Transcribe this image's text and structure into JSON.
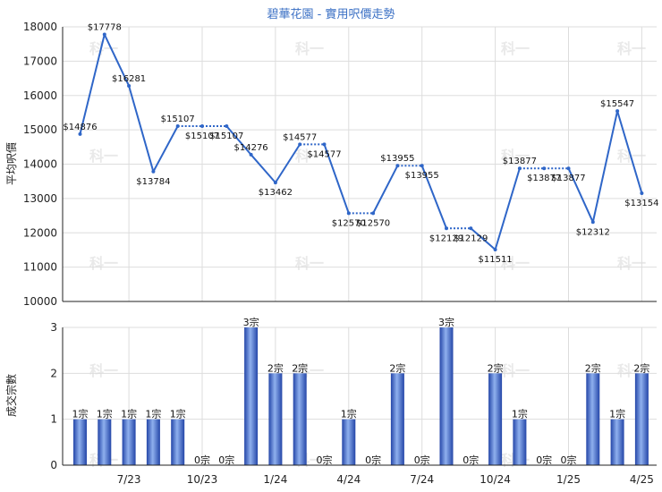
{
  "title": "碧華花園 - 實用呎價走勢",
  "watermark": "科一",
  "colors": {
    "line": "#2f66c8",
    "grid": "#dddddd",
    "bar_dark": "#2446a8",
    "bar_light": "#8fb0ee",
    "title": "#3a6fc4"
  },
  "chart_data": [
    {
      "type": "line",
      "ylabel": "平均呎價",
      "ylim": [
        10000,
        18000
      ],
      "yticks": [
        10000,
        11000,
        12000,
        13000,
        14000,
        15000,
        16000,
        17000,
        18000
      ],
      "grid": true,
      "points": [
        {
          "x": 1,
          "y": 14876,
          "label": "$14876",
          "interpolated": false
        },
        {
          "x": 2,
          "y": 17778,
          "label": "$17778",
          "interpolated": false
        },
        {
          "x": 3,
          "y": 16281,
          "label": "$16281",
          "interpolated": false
        },
        {
          "x": 4,
          "y": 13784,
          "label": "$13784",
          "interpolated": false
        },
        {
          "x": 5,
          "y": 15107,
          "label": "$15107",
          "interpolated": false
        },
        {
          "x": 6,
          "y": 15107,
          "label": "$15107",
          "interpolated": true
        },
        {
          "x": 7,
          "y": 15107,
          "label": "$15107",
          "interpolated": true
        },
        {
          "x": 8,
          "y": 14276,
          "label": "$14276",
          "interpolated": false
        },
        {
          "x": 9,
          "y": 13462,
          "label": "$13462",
          "interpolated": false
        },
        {
          "x": 10,
          "y": 14577,
          "label": "$14577",
          "interpolated": false
        },
        {
          "x": 11,
          "y": 14577,
          "label": "$14577",
          "interpolated": false
        },
        {
          "x": 12,
          "y": 12570,
          "label": "$12570",
          "interpolated": false
        },
        {
          "x": 13,
          "y": 12570,
          "label": "$12570",
          "interpolated": true
        },
        {
          "x": 14,
          "y": 13955,
          "label": "$13955",
          "interpolated": false
        },
        {
          "x": 15,
          "y": 13955,
          "label": "$13955",
          "interpolated": true
        },
        {
          "x": 16,
          "y": 12129,
          "label": "$12129",
          "interpolated": false
        },
        {
          "x": 17,
          "y": 12129,
          "label": "$12129",
          "interpolated": true
        },
        {
          "x": 18,
          "y": 11511,
          "label": "$11511",
          "interpolated": false
        },
        {
          "x": 19,
          "y": 13877,
          "label": "$13877",
          "interpolated": false
        },
        {
          "x": 20,
          "y": 13877,
          "label": "$13877",
          "interpolated": true
        },
        {
          "x": 21,
          "y": 13877,
          "label": "$13877",
          "interpolated": true
        },
        {
          "x": 22,
          "y": 12312,
          "label": "$12312",
          "interpolated": false
        },
        {
          "x": 23,
          "y": 15547,
          "label": "$15547",
          "interpolated": false
        },
        {
          "x": 24,
          "y": 13154,
          "label": "$13154",
          "interpolated": false
        }
      ]
    },
    {
      "type": "bar",
      "ylabel": "成交宗數",
      "ylim": [
        0,
        3
      ],
      "yticks": [
        0,
        1,
        2,
        3
      ],
      "grid": true,
      "values": [
        1,
        1,
        1,
        1,
        1,
        0,
        0,
        3,
        2,
        2,
        0,
        1,
        0,
        2,
        0,
        3,
        0,
        2,
        1,
        0,
        0,
        2,
        1,
        2
      ],
      "labels": [
        "1宗",
        "1宗",
        "1宗",
        "1宗",
        "1宗",
        "0宗",
        "0宗",
        "3宗",
        "2宗",
        "2宗",
        "0宗",
        "1宗",
        "0宗",
        "2宗",
        "0宗",
        "3宗",
        "0宗",
        "2宗",
        "1宗",
        "0宗",
        "0宗",
        "2宗",
        "1宗",
        "2宗"
      ],
      "xticks": [
        {
          "x": 3,
          "label": "7/23"
        },
        {
          "x": 6,
          "label": "10/23"
        },
        {
          "x": 9,
          "label": "1/24"
        },
        {
          "x": 12,
          "label": "4/24"
        },
        {
          "x": 15,
          "label": "7/24"
        },
        {
          "x": 18,
          "label": "10/24"
        },
        {
          "x": 21,
          "label": "1/25"
        },
        {
          "x": 24,
          "label": "4/25"
        }
      ]
    }
  ]
}
